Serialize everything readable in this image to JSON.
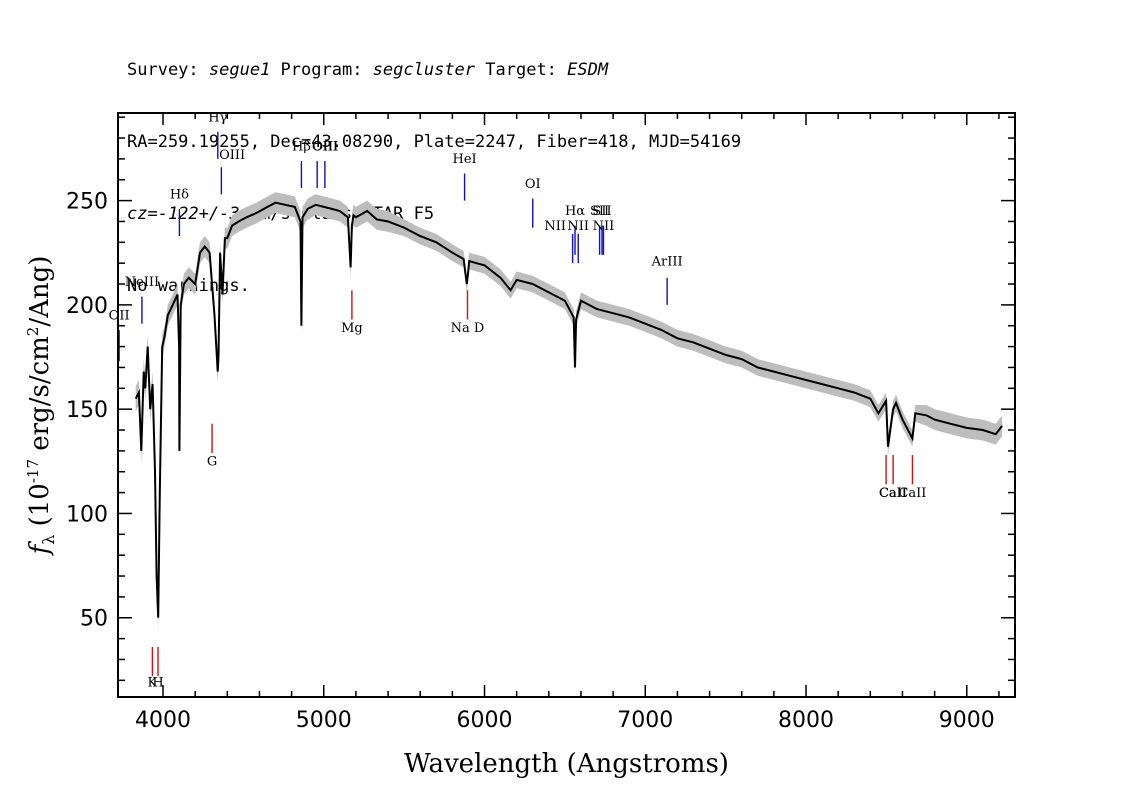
{
  "header": {
    "line1": {
      "survey_label": "Survey: ",
      "survey": "segue1",
      "program_label": " Program: ",
      "program": "segcluster",
      "target_label": " Target: ",
      "target": "ESDM"
    },
    "line2": "RA=259.19255, Dec=43.08290, Plate=2247, Fiber=418, MJD=54169",
    "line3": {
      "cz": "cz=-122+/-3",
      "rest": " km/s Class=STAR F5"
    },
    "line4": "No warnings."
  },
  "colors": {
    "flux": "#000000",
    "error_band": "#bdbdbd",
    "emission_lines": "#1010c0",
    "absorption_lines": "#d01010"
  },
  "chart_data": {
    "type": "line",
    "xlabel": "Wavelength (Angstroms)",
    "ylabel": "f_λ (10^-17 erg/s/cm^2/Ang)",
    "xlim": [
      3720,
      9300
    ],
    "ylim": [
      12,
      292
    ],
    "xticks": [
      4000,
      5000,
      6000,
      7000,
      8000,
      9000
    ],
    "yticks": [
      50,
      100,
      150,
      200,
      250
    ],
    "series": [
      {
        "x": [
          3830,
          3850,
          3865,
          3880,
          3890,
          3905,
          3920,
          3935,
          3950,
          3960,
          3970,
          3980,
          3995,
          4010,
          4030,
          4060,
          4090,
          4100,
          4102,
          4110,
          4130,
          4160,
          4200,
          4230,
          4260,
          4290,
          4320,
          4340,
          4345,
          4355,
          4370,
          4385,
          4400,
          4430,
          4470,
          4520,
          4580,
          4650,
          4700,
          4760,
          4820,
          4855,
          4861,
          4868,
          4900,
          4950,
          5000,
          5050,
          5100,
          5150,
          5167,
          5175,
          5185,
          5200,
          5270,
          5300,
          5330,
          5400,
          5500,
          5600,
          5700,
          5800,
          5870,
          5890,
          5896,
          5905,
          5950,
          6000,
          6100,
          6162,
          6200,
          6300,
          6400,
          6500,
          6555,
          6563,
          6570,
          6600,
          6700,
          6800,
          6900,
          7000,
          7100,
          7200,
          7300,
          7400,
          7500,
          7600,
          7700,
          7800,
          7900,
          8000,
          8100,
          8200,
          8300,
          8400,
          8450,
          8498,
          8510,
          8542,
          8560,
          8600,
          8662,
          8680,
          8750,
          8800,
          8900,
          9000,
          9100,
          9180,
          9220
        ],
        "values": [
          155,
          158,
          130,
          168,
          160,
          180,
          150,
          162,
          120,
          70,
          50,
          110,
          180,
          185,
          195,
          200,
          205,
          180,
          130,
          200,
          210,
          213,
          210,
          225,
          228,
          225,
          195,
          168,
          175,
          225,
          205,
          232,
          232,
          238,
          240,
          242,
          244,
          247,
          249,
          248,
          247,
          240,
          190,
          242,
          246,
          248,
          247,
          246,
          245,
          242,
          218,
          238,
          243,
          242,
          245,
          243,
          241,
          240,
          237,
          233,
          230,
          225,
          222,
          210,
          214,
          221,
          220,
          219,
          213,
          207,
          212,
          210,
          206,
          202,
          194,
          170,
          193,
          202,
          198,
          196,
          194,
          191,
          188,
          184,
          182,
          179,
          176,
          174,
          170,
          168,
          166,
          164,
          162,
          160,
          158,
          155,
          148,
          154,
          132,
          150,
          153,
          145,
          136,
          148,
          147,
          145,
          143,
          141,
          140,
          138,
          142
        ],
        "error": [
          6,
          6,
          6,
          6,
          6,
          6,
          6,
          6,
          6,
          6,
          6,
          6,
          6,
          5,
          5,
          5,
          5,
          5,
          5,
          5,
          5,
          5,
          5,
          5,
          5,
          5,
          5,
          5,
          5,
          5,
          5,
          5,
          5,
          5,
          5,
          5,
          5,
          5,
          5,
          5,
          5,
          5,
          5,
          5,
          5,
          5,
          5,
          5,
          5,
          5,
          5,
          5,
          5,
          5,
          5,
          5,
          5,
          5,
          4,
          4,
          4,
          4,
          4,
          4,
          4,
          4,
          4,
          4,
          4,
          4,
          4,
          4,
          4,
          4,
          4,
          4,
          4,
          4,
          4,
          4,
          4,
          4,
          4,
          4,
          4,
          4,
          4,
          4,
          4,
          4,
          4,
          4,
          4,
          4,
          4,
          4,
          4,
          4,
          4,
          4,
          4,
          4,
          4,
          4,
          5,
          5,
          5,
          5,
          5,
          5,
          5
        ]
      }
    ],
    "emission_lines": [
      {
        "label": "OII",
        "x": 3727,
        "y1": 173,
        "y2": 188,
        "lx": 3727,
        "ly": 193
      },
      {
        "label": "NeIII",
        "x": 3869,
        "y1": 191,
        "y2": 204,
        "lx": 3869,
        "ly": 209
      },
      {
        "label": "Hδ",
        "x": 4102,
        "y1": 233,
        "y2": 246,
        "lx": 4102,
        "ly": 251
      },
      {
        "label": "Hγ",
        "x": 4341,
        "y1": 270,
        "y2": 283,
        "lx": 4341,
        "ly": 288
      },
      {
        "label": "OIII",
        "x": 4363,
        "y1": 253,
        "y2": 266,
        "lx": 4430,
        "ly": 270
      },
      {
        "label": "Hβ",
        "x": 4861,
        "y1": 256,
        "y2": 269,
        "lx": 4861,
        "ly": 274
      },
      {
        "label": "OIII",
        "x": 4959,
        "y1": 256,
        "y2": 269,
        "lx": 5010,
        "ly": 274
      },
      {
        "label": "OIII",
        "x": 5007,
        "y1": 256,
        "y2": 269,
        "lx": 5007,
        "ly": 274
      },
      {
        "label": "HeI",
        "x": 5876,
        "y1": 250,
        "y2": 263,
        "lx": 5876,
        "ly": 268
      },
      {
        "label": "OI",
        "x": 6300,
        "y1": 237,
        "y2": 251,
        "lx": 6300,
        "ly": 256
      },
      {
        "label": "NII",
        "x": 6548,
        "y1": 220,
        "y2": 234,
        "lx": 6440,
        "ly": 236
      },
      {
        "label": "Hα",
        "x": 6563,
        "y1": 224,
        "y2": 238,
        "lx": 6563,
        "ly": 243
      },
      {
        "label": "NII",
        "x": 6583,
        "y1": 220,
        "y2": 234,
        "lx": 6583,
        "ly": 236
      },
      {
        "label": "SII",
        "x": 6716,
        "y1": 224,
        "y2": 238,
        "lx": 6716,
        "ly": 243
      },
      {
        "label": "SII",
        "x": 6731,
        "y1": 224,
        "y2": 238,
        "lx": 6731,
        "ly": 243
      },
      {
        "label": "NII",
        "x": 6740,
        "y1": 224,
        "y2": 238,
        "lx": 6740,
        "ly": 236
      },
      {
        "label": "ArIII",
        "x": 7136,
        "y1": 200,
        "y2": 213,
        "lx": 7136,
        "ly": 219
      }
    ],
    "absorption_lines": [
      {
        "label": "K",
        "x": 3934,
        "y1": 22,
        "y2": 36,
        "lx": 3934,
        "ly": 17
      },
      {
        "label": "H",
        "x": 3969,
        "y1": 22,
        "y2": 36,
        "lx": 3969,
        "ly": 17
      },
      {
        "label": "G",
        "x": 4305,
        "y1": 129,
        "y2": 143,
        "lx": 4305,
        "ly": 123
      },
      {
        "label": "Mg",
        "x": 5175,
        "y1": 193,
        "y2": 207,
        "lx": 5175,
        "ly": 187
      },
      {
        "label": "Na D",
        "x": 5894,
        "y1": 193,
        "y2": 207,
        "lx": 5894,
        "ly": 187
      },
      {
        "label": "CaII",
        "x": 8498,
        "y1": 114,
        "y2": 128,
        "lx": 8540,
        "ly": 108
      },
      {
        "label": "CaII",
        "x": 8542,
        "y1": 114,
        "y2": 128,
        "lx": 8542,
        "ly": 108
      },
      {
        "label": "CaII",
        "x": 8662,
        "y1": 114,
        "y2": 128,
        "lx": 8662,
        "ly": 108
      }
    ]
  }
}
